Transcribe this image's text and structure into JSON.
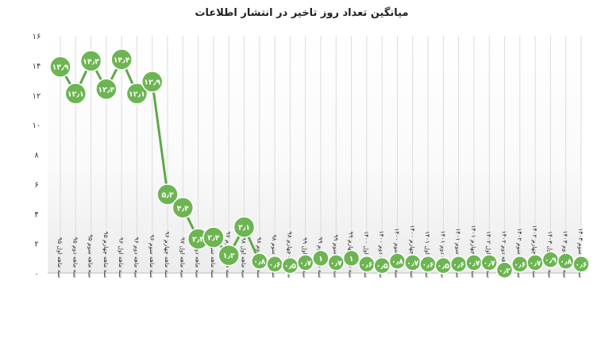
{
  "chart_data": {
    "type": "line",
    "title": "میانگین تعداد روز تاخیر در انتشار اطلاعات",
    "xlabel": "",
    "ylabel": "",
    "ylim": [
      0,
      16
    ],
    "yticks": [
      "۰",
      "۲",
      "۴",
      "۶",
      "۸",
      "۱۰",
      "۱۲",
      "۱۴",
      "۱۶"
    ],
    "ytick_values": [
      0,
      2,
      4,
      6,
      8,
      10,
      12,
      14,
      16
    ],
    "grid": "vertical",
    "legend": "none",
    "line_color": "#5fa84a",
    "marker_color": "#6db552",
    "categories": [
      "سه ماهه اول ۹۵",
      "سه ماهه دوم ۹۵",
      "سه ماهه سوم ۹۵",
      "سه ماهه چهارم ۹۵",
      "سه ماهه اول ۹۶",
      "سه ماهه دوم ۹۶",
      "سه ماهه سوم ۹۶",
      "سه ماهه چهارم ۹۶",
      "سه ماهه اول ۹۷",
      "سه ماهه دوم ۹۷",
      "سه ماهه سوم ۹۷",
      "سه ماهه چهارم ۹۷",
      "سه ماهه اول ۹۸",
      "سه ماهه دوم ۹۸",
      "سه ماهه سوم ۹۸",
      "سه ماهه چهارم ۹۸",
      "سه ماهه اول ۹۹",
      "سه ماهه دوم ۹۹",
      "سه ماهه سوم ۹۹",
      "سه ماهه چهارم ۹۹",
      "سه ماهه اول ۱۴۰۰",
      "سه ماهه دوم ۱۴۰۰",
      "سه ماهه سوم ۱۴۰۰",
      "سه ماهه چهارم ۱۴۰۰",
      "سه ماهه اول ۱۴۰۱",
      "سه ماهه دوم ۱۴۰۱",
      "سه ماهه سوم ۱۴۰۱",
      "سه ماهه چهارم ۱۴۰۱",
      "سه ماهه اول ۱۴۰۲",
      "سه ماهه دوم ۱۴۰۲",
      "سه ماهه سوم ۱۴۰۲",
      "سه ماهه چهارم ۱۴۰۲",
      "سه ماهه اول ۱۴۰۳",
      "سه ماهه دوم ۱۴۰۳",
      "سه ماهه سوم ۱۴۰۳"
    ],
    "values": [
      13.9,
      12.1,
      14.3,
      12.4,
      14.4,
      12.1,
      12.9,
      5.3,
      4.4,
      2.3,
      2.4,
      1.2,
      3.1,
      0.8,
      0.6,
      0.5,
      0.7,
      1,
      0.7,
      1,
      0.6,
      0.5,
      0.8,
      0.7,
      0.6,
      0.5,
      0.6,
      0.7,
      0.7,
      0.2,
      0.6,
      0.7,
      0.9,
      0.8,
      0.6
    ],
    "data_labels": [
      "۱۳٫۹",
      "۱۲٫۱",
      "۱۴٫۳",
      "۱۲٫۴",
      "۱۴٫۴",
      "۱۲٫۱",
      "۱۲٫۹",
      "۵٫۳",
      "۴٫۴",
      "۲٫۳",
      "۲٫۴",
      "۱٫۲",
      "۳٫۱",
      "۰٫۸",
      "۰٫۶",
      "۰٫۵",
      "۰٫۷",
      "۱",
      "۰٫۷",
      "۱",
      "۰٫۶",
      "۰٫۵",
      "۰٫۸",
      "۰٫۷",
      "۰٫۶",
      "۰٫۵",
      "۰٫۶",
      "۰٫۷",
      "۰٫۷",
      "۰٫۲",
      "۰٫۶",
      "۰٫۷",
      "۰٫۹",
      "۰٫۸",
      "۰٫۶"
    ]
  }
}
